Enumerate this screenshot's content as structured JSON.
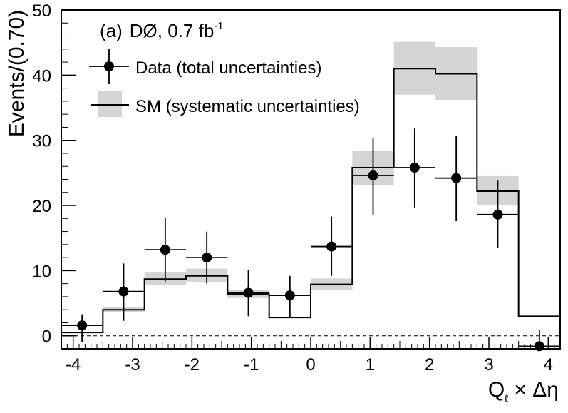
{
  "chart_data": {
    "type": "histogram",
    "panel_label": "(a)",
    "experiment": "DØ, 0.7 fb",
    "luminosity_exponent": "-1",
    "xlabel_main": "Q",
    "xlabel_sub": "ℓ",
    "xlabel_rest": " × Δη",
    "ylabel": "Events/(0.70)",
    "xlim": [
      -4.2,
      4.2
    ],
    "ylim": [
      -2,
      50
    ],
    "x_ticks": [
      -4,
      -3,
      -2,
      -1,
      0,
      1,
      2,
      3,
      4
    ],
    "x_tick_labels": [
      "-4",
      "-3",
      "-2",
      "-1",
      "0",
      "1",
      "2",
      "3",
      "4"
    ],
    "y_ticks": [
      0,
      10,
      20,
      30,
      40,
      50
    ],
    "y_tick_labels": [
      "0",
      "10",
      "20",
      "30",
      "40",
      "50"
    ],
    "zero_line": true,
    "bin_edges": [
      -4.2,
      -3.5,
      -2.8,
      -2.1,
      -1.4,
      -0.7,
      0.0,
      0.7,
      1.4,
      2.1,
      2.8,
      3.5,
      4.2
    ],
    "series": [
      {
        "name": "SM (systematic uncertainties)",
        "kind": "step",
        "values": [
          0.5,
          4.0,
          8.7,
          9.2,
          6.4,
          2.8,
          7.9,
          25.8,
          41.0,
          40.2,
          22.2,
          3.0
        ],
        "band_low": [
          0.5,
          3.7,
          7.8,
          8.2,
          5.8,
          2.8,
          7.0,
          23.1,
          37.0,
          36.2,
          20.0,
          3.0
        ],
        "band_high": [
          0.5,
          4.4,
          9.7,
          10.3,
          7.1,
          2.8,
          8.8,
          28.4,
          45.1,
          44.3,
          24.5,
          3.0
        ]
      },
      {
        "name": "Data (total uncertainties)",
        "kind": "points",
        "x": [
          -3.85,
          -3.15,
          -2.45,
          -1.75,
          -1.05,
          -0.35,
          0.35,
          1.05,
          1.75,
          2.45,
          3.15,
          3.85
        ],
        "values": [
          1.6,
          6.8,
          13.2,
          12.0,
          6.6,
          6.2,
          13.7,
          24.6,
          25.8,
          24.2,
          18.6,
          -1.6
        ],
        "err_low": [
          2.6,
          4.5,
          4.9,
          4.0,
          3.6,
          3.3,
          4.5,
          6.0,
          6.1,
          6.6,
          5.1,
          0.0
        ],
        "err_high": [
          1.7,
          4.3,
          4.9,
          4.0,
          3.5,
          3.0,
          4.6,
          5.8,
          6.0,
          6.5,
          5.2,
          2.5
        ]
      }
    ],
    "legend": [
      {
        "label": "Data (total uncertainties)",
        "kind": "marker"
      },
      {
        "label": "SM (systematic uncertainties)",
        "kind": "band-line"
      }
    ],
    "legend_position": "top-left",
    "colors": {
      "band": "#d3d6d5",
      "line": "#000000",
      "marker": "#000000"
    }
  }
}
